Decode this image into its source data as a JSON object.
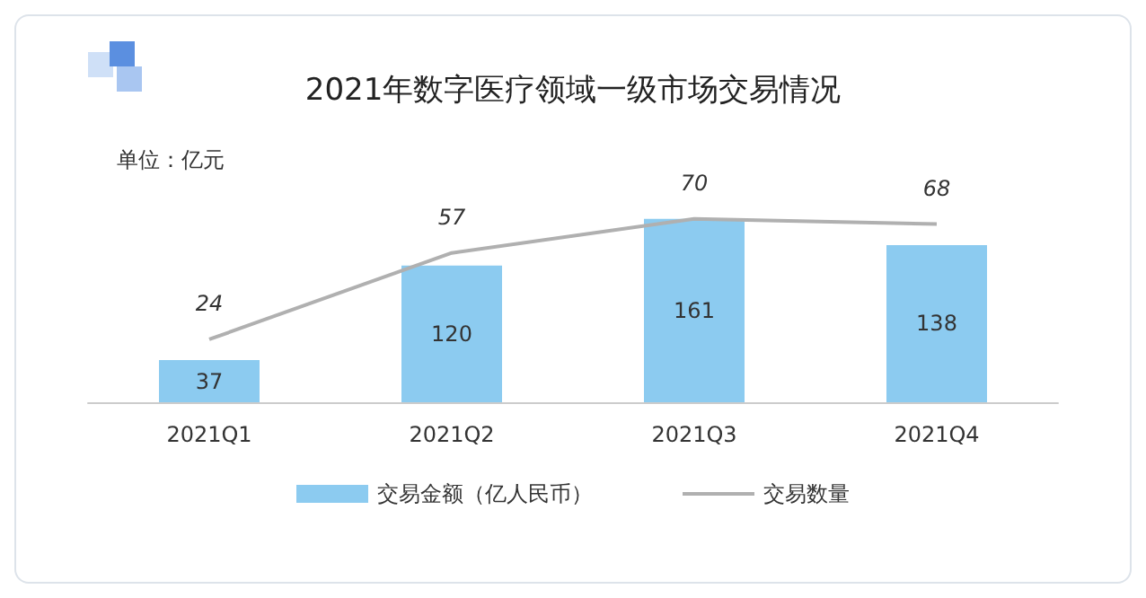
{
  "chart_data": {
    "type": "bar",
    "title": "2021年数字医疗领域一级市场交易情况",
    "annotations": [
      "单位：亿元"
    ],
    "categories": [
      "2021Q1",
      "2021Q2",
      "2021Q3",
      "2021Q4"
    ],
    "series": [
      {
        "name": "交易金额（亿人民币）",
        "color": "#8ccbf0",
        "values": [
          37,
          120,
          161,
          138
        ]
      },
      {
        "name": "交易数量",
        "type": "line",
        "axis": "y2",
        "color": "#b0b0b0",
        "values": [
          24,
          57,
          70,
          68
        ]
      }
    ],
    "tick_labels": "x",
    "data_labels": true,
    "legend": "bottom",
    "marker": "none",
    "line_style": "solid"
  }
}
